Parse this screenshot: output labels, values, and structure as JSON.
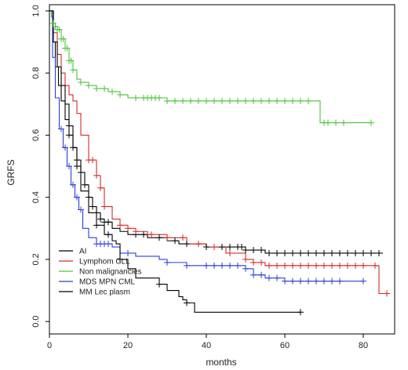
{
  "chart_data": {
    "type": "line",
    "title": "",
    "xlabel": "months",
    "ylabel": "GRFS",
    "xlim": [
      0,
      88
    ],
    "ylim": [
      -0.04,
      1.02
    ],
    "x_ticks": [
      0,
      20,
      40,
      60,
      80
    ],
    "x_tick_labels": [
      "0",
      "20",
      "40",
      "60",
      "80"
    ],
    "y_ticks": [
      0.0,
      0.2,
      0.4,
      0.6,
      0.8,
      1.0
    ],
    "y_tick_labels": [
      "0.0",
      "0.2",
      "0.4",
      "0.6",
      "0.8",
      "1.0"
    ],
    "grid": false,
    "legend_position": "bottom-left",
    "series": [
      {
        "name": "AI",
        "color": "#000000",
        "x": [
          0,
          0.8,
          1.5,
          2.3,
          3,
          4,
          5,
          6,
          7,
          8,
          9,
          10,
          11,
          12,
          13,
          14,
          16,
          18,
          20,
          22,
          25,
          28,
          30,
          33,
          36,
          40,
          45,
          50,
          55,
          60,
          70,
          80,
          85
        ],
        "y": [
          1.0,
          0.9,
          0.82,
          0.76,
          0.71,
          0.65,
          0.6,
          0.56,
          0.52,
          0.48,
          0.44,
          0.4,
          0.37,
          0.35,
          0.33,
          0.32,
          0.3,
          0.29,
          0.28,
          0.28,
          0.27,
          0.27,
          0.26,
          0.25,
          0.25,
          0.24,
          0.24,
          0.23,
          0.22,
          0.22,
          0.22,
          0.22,
          0.22
        ]
      },
      {
        "name": "Lymphom CLL",
        "color": "#d22b2b",
        "x": [
          0,
          1,
          2,
          3,
          4,
          5,
          6,
          7,
          8,
          10,
          12,
          13,
          14,
          16,
          18,
          20,
          22,
          25,
          30,
          35,
          40,
          45,
          50,
          52,
          55,
          60,
          70,
          80,
          83,
          84,
          86
        ],
        "y": [
          1.0,
          0.93,
          0.86,
          0.8,
          0.76,
          0.73,
          0.71,
          0.67,
          0.6,
          0.52,
          0.47,
          0.43,
          0.37,
          0.33,
          0.31,
          0.3,
          0.29,
          0.28,
          0.27,
          0.25,
          0.24,
          0.22,
          0.2,
          0.19,
          0.18,
          0.18,
          0.18,
          0.18,
          0.18,
          0.09,
          0.09
        ]
      },
      {
        "name": "Non malignancies",
        "color": "#4bc23a",
        "x": [
          0,
          0.5,
          1,
          1.5,
          2,
          3,
          4,
          5,
          6,
          7,
          8,
          10,
          12,
          15,
          18,
          20,
          25,
          30,
          40,
          50,
          60,
          68,
          69,
          75,
          82
        ],
        "y": [
          1.0,
          0.98,
          0.96,
          0.95,
          0.94,
          0.91,
          0.88,
          0.84,
          0.81,
          0.78,
          0.77,
          0.76,
          0.75,
          0.74,
          0.73,
          0.72,
          0.72,
          0.71,
          0.71,
          0.71,
          0.71,
          0.71,
          0.64,
          0.64,
          0.64
        ]
      },
      {
        "name": "MDS MPN CML",
        "color": "#2b3fd6",
        "x": [
          0,
          0.8,
          1.5,
          2.5,
          3.5,
          4.5,
          5.5,
          6.5,
          7.5,
          8.5,
          10,
          12,
          14,
          16,
          18,
          20,
          22,
          25,
          28,
          30,
          35,
          40,
          45,
          50,
          52,
          55,
          60,
          70,
          80
        ],
        "y": [
          1.0,
          0.85,
          0.72,
          0.62,
          0.56,
          0.5,
          0.44,
          0.4,
          0.36,
          0.3,
          0.27,
          0.25,
          0.25,
          0.24,
          0.22,
          0.22,
          0.21,
          0.21,
          0.2,
          0.19,
          0.18,
          0.18,
          0.18,
          0.17,
          0.15,
          0.14,
          0.13,
          0.13,
          0.13
        ]
      },
      {
        "name": "MM Lec plasm",
        "color": "#000000",
        "x": [
          0,
          1,
          2,
          3,
          4,
          5,
          6,
          7,
          8,
          10,
          12,
          14,
          16,
          17,
          18,
          20,
          22,
          25,
          28,
          30,
          33,
          34,
          35,
          37,
          40,
          50,
          60,
          64
        ],
        "y": [
          1.0,
          0.9,
          0.82,
          0.76,
          0.7,
          0.63,
          0.56,
          0.5,
          0.42,
          0.35,
          0.31,
          0.28,
          0.26,
          0.25,
          0.2,
          0.17,
          0.14,
          0.14,
          0.12,
          0.1,
          0.08,
          0.07,
          0.06,
          0.03,
          0.03,
          0.03,
          0.03,
          0.03
        ]
      }
    ],
    "censor_marks": [
      {
        "series": "Non malignancies",
        "x": [
          1,
          1.5,
          2,
          2.5,
          3,
          3.5,
          4,
          4.5,
          5,
          5.5,
          6,
          8,
          10,
          12,
          14,
          16,
          18,
          22,
          24,
          25,
          26,
          27,
          28,
          30,
          32,
          34,
          36,
          38,
          40,
          42,
          44,
          46,
          48,
          50,
          52,
          54,
          56,
          58,
          60,
          62,
          64,
          66,
          70,
          71,
          73,
          75,
          82
        ]
      },
      {
        "series": "AI",
        "x": [
          5,
          6,
          7,
          8,
          9,
          10,
          11,
          12,
          13,
          14,
          15,
          22,
          24,
          28,
          32,
          35,
          38,
          40,
          42,
          44,
          46,
          48,
          49,
          50,
          52,
          54,
          56,
          58,
          60,
          62,
          64,
          66,
          68,
          70,
          72,
          74,
          76,
          78,
          80,
          82,
          84
        ]
      },
      {
        "series": "Lymphom CLL",
        "x": [
          10,
          11,
          12,
          13,
          14,
          18,
          20,
          22,
          26,
          30,
          34,
          38,
          42,
          46,
          50,
          52,
          54,
          56,
          58,
          60,
          62,
          64,
          66,
          68,
          70,
          72,
          74,
          76,
          78,
          80,
          83,
          86
        ]
      },
      {
        "series": "MDS MPN CML",
        "x": [
          3,
          4,
          5,
          6,
          7,
          8,
          12,
          13,
          14,
          15,
          20,
          30,
          35,
          40,
          42,
          44,
          46,
          48,
          50,
          52,
          54,
          56,
          58,
          60,
          62,
          64,
          66,
          68,
          70,
          72,
          74,
          80
        ]
      },
      {
        "series": "MM Lec plasm",
        "x": [
          3,
          5,
          7,
          12,
          15,
          18,
          28,
          35,
          64
        ]
      }
    ]
  }
}
